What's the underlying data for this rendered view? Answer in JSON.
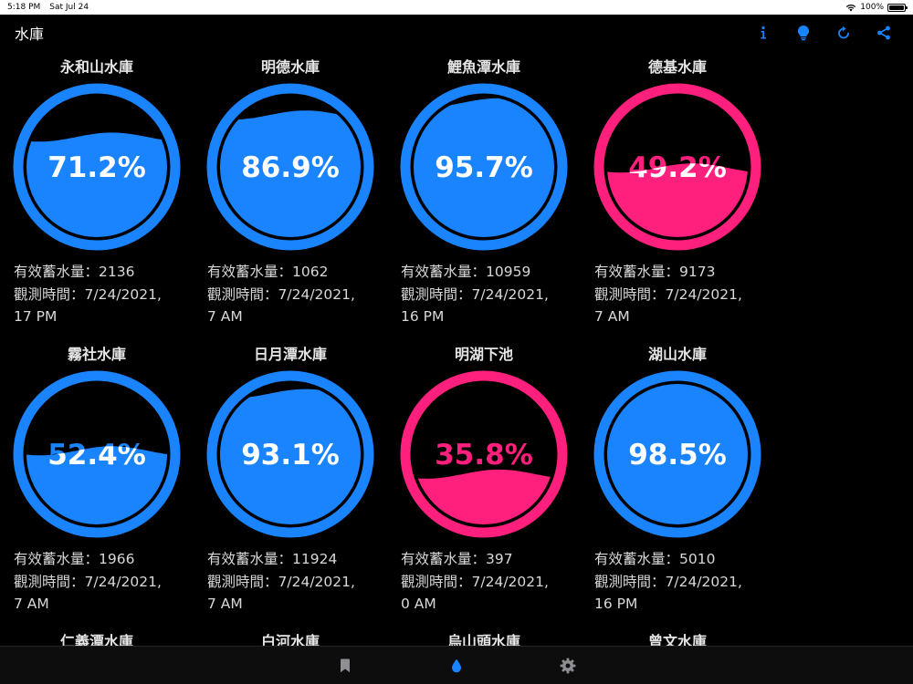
{
  "status_bar": {
    "time": "5:18 PM",
    "date": "Sat Jul 24",
    "battery": "100%"
  },
  "nav": {
    "title": "水庫"
  },
  "icons": {
    "info": "info-icon",
    "tip": "lightbulb-icon",
    "refresh": "refresh-icon",
    "share": "share-icon"
  },
  "colors": {
    "normal": "#1a84ff",
    "low": "#ff1f7d",
    "background": "#000000"
  },
  "storage_label": "有效蓄水量：",
  "time_label": "觀測時間：",
  "reservoirs": [
    {
      "name": "永和山水庫",
      "percent": 71.2,
      "percent_text": "71.2%",
      "storage": "2136",
      "time_line1": "7/24/2021,",
      "time_line2": "17 PM",
      "status": "normal"
    },
    {
      "name": "明德水庫",
      "percent": 86.9,
      "percent_text": "86.9%",
      "storage": "1062",
      "time_line1": "7/24/2021,",
      "time_line2": "7 AM",
      "status": "normal"
    },
    {
      "name": "鯉魚潭水庫",
      "percent": 95.7,
      "percent_text": "95.7%",
      "storage": "10959",
      "time_line1": "7/24/2021,",
      "time_line2": "16 PM",
      "status": "normal"
    },
    {
      "name": "德基水庫",
      "percent": 49.2,
      "percent_text": "49.2%",
      "storage": "9173",
      "time_line1": "7/24/2021,",
      "time_line2": "7 AM",
      "status": "low"
    },
    {
      "name": "霧社水庫",
      "percent": 52.4,
      "percent_text": "52.4%",
      "storage": "1966",
      "time_line1": "7/24/2021,",
      "time_line2": "7 AM",
      "status": "normal"
    },
    {
      "name": "日月潭水庫",
      "percent": 93.1,
      "percent_text": "93.1%",
      "storage": "11924",
      "time_line1": "7/24/2021,",
      "time_line2": "7 AM",
      "status": "normal"
    },
    {
      "name": "明湖下池",
      "percent": 35.8,
      "percent_text": "35.8%",
      "storage": "397",
      "time_line1": "7/24/2021,",
      "time_line2": "0 AM",
      "status": "low"
    },
    {
      "name": "湖山水庫",
      "percent": 98.5,
      "percent_text": "98.5%",
      "storage": "5010",
      "time_line1": "7/24/2021,",
      "time_line2": "16 PM",
      "status": "normal"
    }
  ],
  "partial_row": [
    "仁義潭水庫",
    "白河水庫",
    "烏山頭水庫",
    "曾文水庫"
  ],
  "tab_bar": {
    "bookmark": "bookmark-icon",
    "water": "water-drop-icon",
    "settings": "gear-icon",
    "selected": "water"
  }
}
